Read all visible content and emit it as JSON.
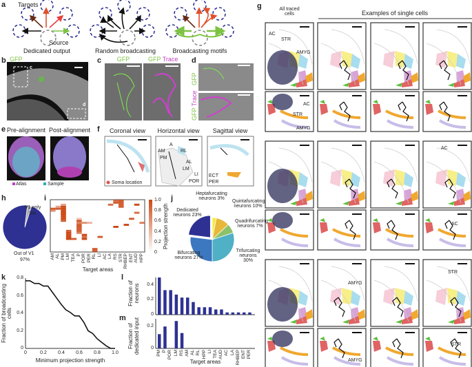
{
  "panels": {
    "a": {
      "letter": "a",
      "targets": "Targets",
      "source": "Source",
      "titles": [
        "Dedicated output",
        "Random broadcasting",
        "Broadcasting motifs"
      ]
    },
    "b": {
      "letter": "b",
      "label": "GFP",
      "inset_c": "c",
      "inset_d": "d"
    },
    "c": {
      "letter": "c",
      "label_left": "GFP",
      "label_right_gfp": "GFP",
      "label_right_trace": "Trace"
    },
    "d": {
      "letter": "d",
      "label_top": "GFP",
      "label_bottom_gfp": "GFP",
      "label_bottom_trace": "Trace"
    },
    "e": {
      "letter": "e",
      "pre": "Pre-alignment",
      "post": "Post-alignment",
      "legend_atlas": "Atlas",
      "legend_sample": "Sample",
      "atlas_color": "#c040c0",
      "sample_color": "#2aa9b5"
    },
    "f": {
      "letter": "f",
      "views": [
        "Coronal view",
        "Horizontal view",
        "Sagittal view"
      ],
      "soma": "Soma location",
      "soma_color": "#e05050",
      "area_labels": [
        "AM",
        "A",
        "RL",
        "PM",
        "AL",
        "LM",
        "LI",
        "POR",
        "ECT",
        "PER"
      ]
    },
    "g": {
      "letter": "g",
      "all_cells": "All traced cells",
      "examples": "Examples of single cells",
      "labels": {
        "ac": "AC",
        "str": "STR",
        "amyg": "AMYG"
      }
    },
    "h": {
      "letter": "h"
    },
    "i": {
      "letter": "i"
    },
    "j": {
      "letter": "j"
    },
    "k": {
      "letter": "k"
    },
    "l": {
      "letter": "l"
    },
    "m": {
      "letter": "m"
    }
  },
  "chart_data": [
    {
      "id": "h",
      "type": "pie",
      "slices": [
        {
          "label": "V1 only",
          "value": 3,
          "text": "3%",
          "color": "#aaaaaa"
        },
        {
          "label": "Out of V1",
          "value": 97,
          "text": "97%",
          "color": "#2e3192"
        }
      ]
    },
    {
      "id": "i",
      "type": "heatmap",
      "xlabel": "Target areas",
      "colorbar_label": "Projection strength",
      "colorbar_ticks": [
        "1.0",
        "0.8",
        "0.6",
        "0.4",
        "0.2",
        "0"
      ],
      "categories": [
        "AM",
        "AL",
        "PM",
        "LM",
        "TEA",
        "P",
        "POR",
        "PER",
        "RL",
        "LI",
        "AC",
        "LA",
        "RS",
        "STR",
        "RHBEP",
        "ENT",
        "AUD",
        "HPP"
      ],
      "cells": [
        [
          0,
          4,
          0.9
        ],
        [
          0,
          5,
          0.6
        ],
        [
          1,
          3,
          0.5
        ],
        [
          1,
          4,
          0.9
        ],
        [
          2,
          2,
          0.5
        ],
        [
          2,
          3,
          1.0
        ],
        [
          2,
          4,
          1.0
        ],
        [
          2,
          5,
          1.0
        ],
        [
          2,
          6,
          1.0
        ],
        [
          2,
          7,
          1.0
        ],
        [
          2,
          8,
          1.0
        ],
        [
          2,
          9,
          1.0
        ],
        [
          2,
          10,
          0.9
        ],
        [
          3,
          15,
          0.9
        ],
        [
          3,
          16,
          1.0
        ],
        [
          3,
          17,
          1.0
        ],
        [
          3,
          18,
          1.0
        ],
        [
          3,
          19,
          1.0
        ],
        [
          4,
          19,
          0.9
        ],
        [
          5,
          9,
          0.3
        ],
        [
          5,
          10,
          0.9
        ],
        [
          5,
          11,
          0.7
        ],
        [
          5,
          12,
          0.9
        ],
        [
          5,
          13,
          0.9
        ],
        [
          5,
          14,
          0.9
        ],
        [
          5,
          15,
          0.9
        ],
        [
          5,
          16,
          0.7
        ],
        [
          6,
          11,
          0.6
        ],
        [
          6,
          17,
          1.0
        ],
        [
          6,
          18,
          0.8
        ],
        [
          6,
          19,
          1.0
        ],
        [
          7,
          11,
          0.4
        ],
        [
          8,
          24,
          0.9
        ],
        [
          8,
          25,
          0.9
        ],
        [
          9,
          18,
          0.9
        ],
        [
          11,
          2,
          0.8
        ],
        [
          12,
          13,
          1.0
        ],
        [
          12,
          1,
          0.9
        ],
        [
          12,
          0,
          0.8
        ],
        [
          13,
          0,
          0.9
        ],
        [
          13,
          1,
          0.9
        ],
        [
          13,
          2,
          0.9
        ],
        [
          13,
          3,
          0.9
        ],
        [
          14,
          12,
          1.0
        ],
        [
          17,
          11,
          0.7
        ],
        [
          15,
          9,
          0.9
        ],
        [
          16,
          2,
          1.0
        ],
        [
          16,
          6,
          0.8
        ]
      ]
    },
    {
      "id": "j",
      "type": "pie",
      "slices": [
        {
          "label": "Dedicated neurons",
          "value": 23,
          "text": "23%",
          "color": "#2e3192",
          "exploded": true
        },
        {
          "label": "Heptafurcating neurons",
          "value": 3,
          "text": "3%",
          "color": "#f4ec3a"
        },
        {
          "label": "Quintafurcating neurons",
          "value": 10,
          "text": "10%",
          "color": "#e8b83a"
        },
        {
          "label": "Quadrifurcating neurons",
          "value": 7,
          "text": "7%",
          "color": "#8cc16a"
        },
        {
          "label": "Trifurcating neurons",
          "value": 30,
          "text": "30%",
          "color": "#4fb0c6"
        },
        {
          "label": "Bifurcating neurons",
          "value": 27,
          "text": "27%",
          "color": "#3c78c0"
        }
      ]
    },
    {
      "id": "k",
      "type": "line",
      "xlabel": "Minimum projection strength",
      "ylabel": "Fraction of broadcasting cells",
      "xlim": [
        0,
        1.0
      ],
      "ylim": [
        0,
        0.8
      ],
      "xticks": [
        "0",
        "0.2",
        "0.4",
        "0.6",
        "0.8",
        "1.0"
      ],
      "yticks": [
        "0",
        "0.2",
        "0.4",
        "0.6",
        "0.8"
      ],
      "x": [
        0,
        0.05,
        0.1,
        0.15,
        0.2,
        0.25,
        0.3,
        0.35,
        0.4,
        0.45,
        0.5,
        0.55,
        0.6,
        0.65,
        0.7,
        0.75,
        0.8,
        0.85,
        0.9,
        0.95,
        1.0
      ],
      "y": [
        0.77,
        0.77,
        0.74,
        0.74,
        0.71,
        0.71,
        0.64,
        0.57,
        0.5,
        0.44,
        0.41,
        0.37,
        0.37,
        0.3,
        0.2,
        0.17,
        0.11,
        0.07,
        0.03,
        0.0,
        0.0
      ]
    },
    {
      "id": "l",
      "type": "bar",
      "ylabel": "Fraction of neurons",
      "ylim": [
        0,
        0.5
      ],
      "yticks": [
        "0",
        "0.2",
        "0.4"
      ],
      "color": "#2e3192",
      "categories": [
        "PM",
        "P",
        "POR",
        "LM",
        "RS",
        "AM",
        "AL",
        "RL",
        "HPP",
        "LI",
        "TEA",
        "AUD",
        "AC",
        "LA",
        "RHBEP",
        "ENT",
        "PER"
      ],
      "values": [
        0.5,
        0.33,
        0.33,
        0.27,
        0.23,
        0.23,
        0.17,
        0.1,
        0.1,
        0.1,
        0.07,
        0.07,
        0.03,
        0.03,
        0.03,
        0.03,
        0.03
      ]
    },
    {
      "id": "m",
      "type": "bar",
      "ylabel": "Fraction of dedicated input",
      "xlabel": "Target areas",
      "ylim": [
        0,
        0.27
      ],
      "yticks": [
        "0",
        "0.2"
      ],
      "color": "#2e3192",
      "categories": [
        "PM",
        "P",
        "POR",
        "LM",
        "RS",
        "AM",
        "AL",
        "RL",
        "HPP",
        "LI",
        "TEA",
        "AUD",
        "AC",
        "LA",
        "RHBEP",
        "ENT",
        "PER"
      ],
      "values": [
        0.13,
        0.2,
        0,
        0.25,
        0.14,
        0,
        0,
        0,
        0,
        0,
        0,
        0,
        0,
        0,
        0,
        0,
        0
      ]
    }
  ]
}
